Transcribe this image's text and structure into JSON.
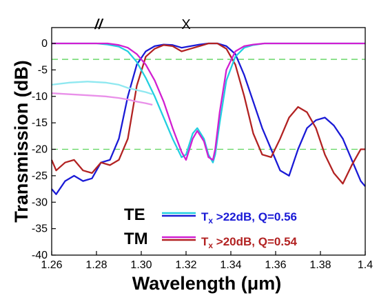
{
  "chart_data": {
    "type": "line",
    "xlabel": "Wavelength (μm)",
    "ylabel": "Transmission (dB)",
    "xlim": [
      1.26,
      1.4
    ],
    "ylim": [
      -40,
      3
    ],
    "xticks": [
      "1.26",
      "1.28",
      "1.30",
      "1.32",
      "1.34",
      "1.36",
      "1.38",
      "1.4"
    ],
    "yticks": [
      "0",
      "-5",
      "-10",
      "-15",
      "-20",
      "-25",
      "-30",
      "-35",
      "-40"
    ],
    "grid": false,
    "reference_lines": [
      -3,
      -20
    ],
    "annotations": [
      "//",
      "X"
    ],
    "legend": {
      "placement": "bottom-right",
      "groups": [
        {
          "label": "TE",
          "color": "#1a1ad6",
          "text": "T",
          "sub": "x",
          "rest": " >22dB, Q=0.56"
        },
        {
          "label": "TM",
          "color": "#b22222",
          "text": "T",
          "sub": "x",
          "rest": " >20dB, Q=0.54"
        }
      ]
    },
    "series": [
      {
        "key": "te_cross",
        "color": "#1a1ad6",
        "x": [
          1.26,
          1.262,
          1.266,
          1.27,
          1.274,
          1.278,
          1.282,
          1.286,
          1.29,
          1.294,
          1.298,
          1.302,
          1.306,
          1.31,
          1.314,
          1.318,
          1.322,
          1.326,
          1.33,
          1.334,
          1.338,
          1.342,
          1.346,
          1.35,
          1.354,
          1.358,
          1.362,
          1.366,
          1.37,
          1.374,
          1.378,
          1.382,
          1.386,
          1.39,
          1.394,
          1.398,
          1.4
        ],
        "y": [
          -27.5,
          -28.5,
          -26,
          -25,
          -26,
          -25.5,
          -22.5,
          -22,
          -18,
          -10,
          -4,
          -1.5,
          -0.5,
          -0.2,
          -0.3,
          -0.8,
          -0.5,
          -0.2,
          0,
          0,
          -0.5,
          -2,
          -6,
          -11,
          -16,
          -20,
          -24,
          -25,
          -20,
          -16,
          -14.5,
          -14,
          -15.5,
          -18,
          -22,
          -26,
          -27
        ]
      },
      {
        "key": "tm_cross",
        "color": "#b22222",
        "x": [
          1.26,
          1.262,
          1.266,
          1.27,
          1.274,
          1.278,
          1.282,
          1.286,
          1.29,
          1.294,
          1.298,
          1.302,
          1.306,
          1.31,
          1.314,
          1.318,
          1.322,
          1.326,
          1.33,
          1.334,
          1.338,
          1.342,
          1.346,
          1.35,
          1.354,
          1.358,
          1.362,
          1.366,
          1.37,
          1.374,
          1.378,
          1.382,
          1.386,
          1.39,
          1.394,
          1.398,
          1.4
        ],
        "y": [
          -22,
          -24,
          -22.5,
          -22,
          -24,
          -24.5,
          -22.5,
          -23,
          -22,
          -18,
          -8,
          -2.5,
          -1,
          -0.3,
          -0.5,
          -1.5,
          -1,
          -0.5,
          0,
          0,
          -1,
          -4,
          -10,
          -17,
          -21,
          -21.5,
          -18,
          -14,
          -12,
          -13,
          -16,
          -21,
          -24.5,
          -26.5,
          -23,
          -20,
          -20
        ]
      },
      {
        "key": "te_bar",
        "color": "#22cfe0",
        "x": [
          1.26,
          1.265,
          1.27,
          1.275,
          1.28,
          1.285,
          1.29,
          1.294,
          1.298,
          1.302,
          1.306,
          1.31,
          1.314,
          1.318,
          1.32,
          1.323,
          1.325,
          1.328,
          1.33,
          1.332,
          1.333,
          1.335,
          1.338,
          1.342,
          1.346,
          1.35,
          1.355,
          1.36,
          1.365,
          1.37,
          1.375,
          1.38,
          1.385,
          1.39,
          1.395,
          1.4
        ],
        "y": [
          0,
          0,
          0,
          0,
          0,
          -0.2,
          -0.6,
          -1.5,
          -3.5,
          -6.5,
          -10,
          -14,
          -18,
          -21.5,
          -21,
          -17,
          -16,
          -18,
          -21,
          -22.5,
          -21,
          -15,
          -7,
          -2.5,
          -0.8,
          -0.3,
          0,
          0,
          0,
          0,
          0,
          0,
          0,
          0,
          0,
          0
        ]
      },
      {
        "key": "tm_bar",
        "color": "#d11fd1",
        "x": [
          1.26,
          1.265,
          1.27,
          1.275,
          1.28,
          1.285,
          1.29,
          1.294,
          1.298,
          1.302,
          1.306,
          1.31,
          1.314,
          1.318,
          1.32,
          1.323,
          1.325,
          1.328,
          1.33,
          1.332,
          1.333,
          1.335,
          1.338,
          1.342,
          1.346,
          1.35,
          1.355,
          1.36,
          1.365,
          1.37,
          1.375,
          1.38,
          1.385,
          1.39,
          1.395,
          1.4
        ],
        "y": [
          0,
          0,
          0,
          0,
          0,
          0,
          -0.3,
          -0.8,
          -2,
          -4,
          -7,
          -11,
          -16,
          -20.5,
          -22,
          -18,
          -16.5,
          -18.5,
          -21.5,
          -22,
          -20,
          -13,
          -5,
          -1.5,
          -0.5,
          -0.2,
          0,
          0,
          0,
          0,
          0,
          0,
          0,
          0,
          0,
          0
        ]
      },
      {
        "key": "upper_left_trace",
        "color": "#8fe8f0",
        "x": [
          1.26,
          1.268,
          1.276,
          1.284,
          1.29,
          1.294,
          1.298,
          1.302,
          1.305
        ],
        "y": [
          -7.8,
          -7.4,
          -7.2,
          -7.4,
          -7.8,
          -8.4,
          -8.8,
          -9.2,
          -9.6
        ]
      },
      {
        "key": "upper_left_trace_2",
        "color": "#e990e9",
        "x": [
          1.26,
          1.268,
          1.276,
          1.284,
          1.29,
          1.294,
          1.298,
          1.302,
          1.305
        ],
        "y": [
          -9.4,
          -9.6,
          -9.8,
          -10,
          -10.3,
          -10.6,
          -11,
          -11.3,
          -11.6
        ]
      }
    ]
  }
}
